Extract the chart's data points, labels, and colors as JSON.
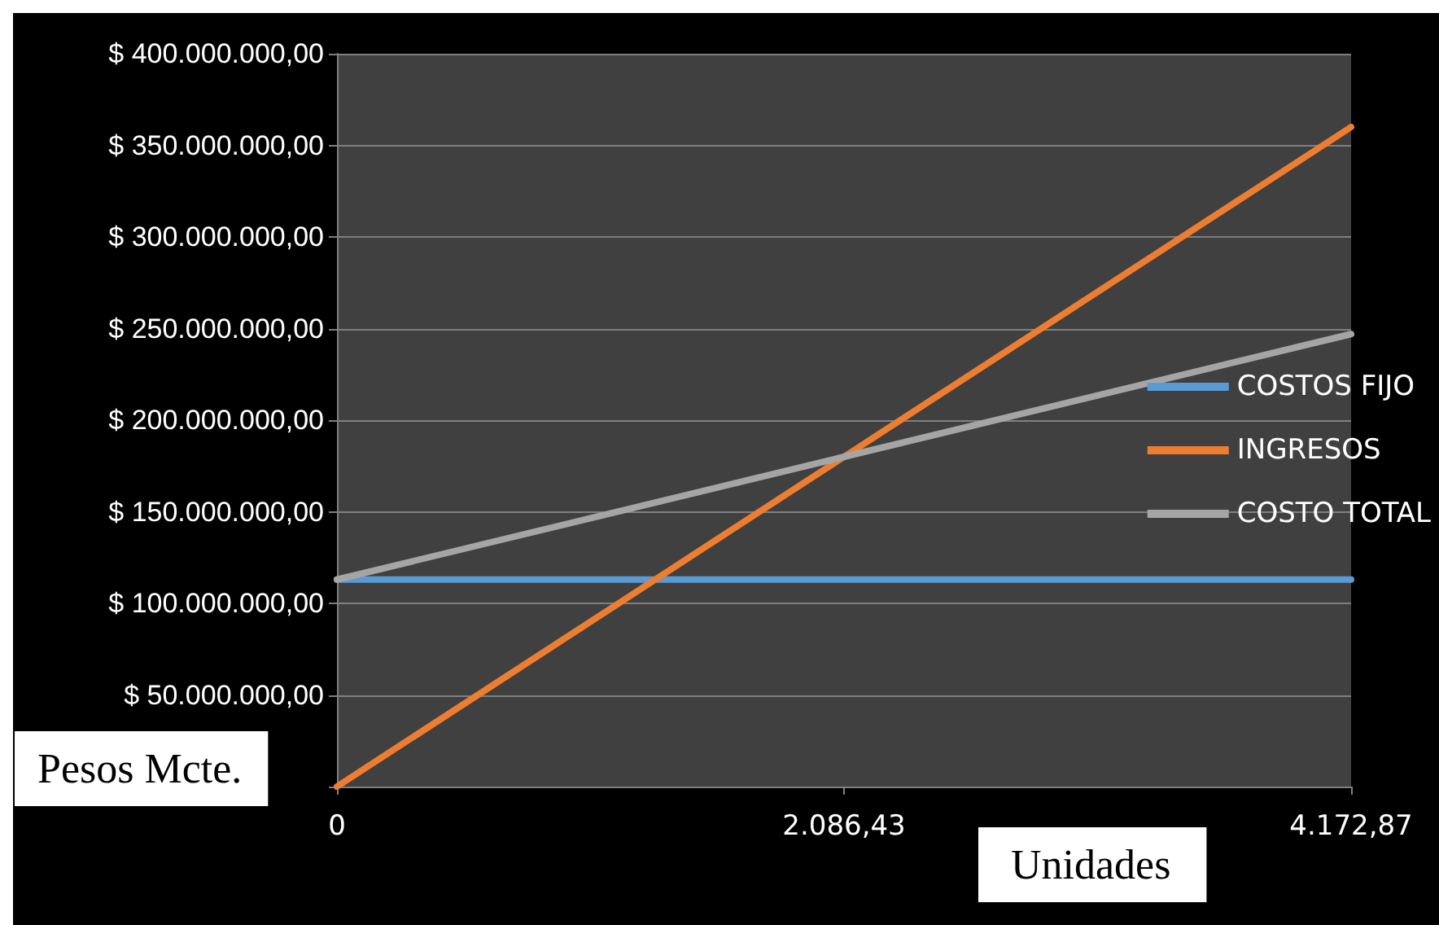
{
  "chart_data": {
    "type": "line",
    "xlabel": "Unidades",
    "ylabel": "Pesos Mcte.",
    "categories": [
      "0",
      "2.086,43",
      "4.172,87"
    ],
    "series": [
      {
        "name": "COSTOS FIJO",
        "color": "#5b9bd5",
        "values": [
          113000000,
          113000000,
          113000000
        ]
      },
      {
        "name": "INGRESOS",
        "color": "#ed7d31",
        "values": [
          0,
          180000000,
          360000000
        ]
      },
      {
        "name": "COSTO TOTAL",
        "color": "#a5a5a5",
        "values": [
          113000000,
          180000000,
          247000000
        ]
      }
    ],
    "ylim": [
      0,
      400000000
    ],
    "yticks": [
      {
        "value": 0,
        "label": null
      },
      {
        "value": 50000000,
        "label": "$ 50.000.000,00"
      },
      {
        "value": 100000000,
        "label": "$ 100.000.000,00"
      },
      {
        "value": 150000000,
        "label": "$ 150.000.000,00"
      },
      {
        "value": 200000000,
        "label": "$ 200.000.000,00"
      },
      {
        "value": 250000000,
        "label": "$ 250.000.000,00"
      },
      {
        "value": 300000000,
        "label": "$ 300.000.000,00"
      },
      {
        "value": 350000000,
        "label": "$ 350.000.000,00"
      },
      {
        "value": 400000000,
        "label": "$ 400.000.000,00"
      }
    ],
    "grid": "y",
    "legend": "right",
    "marker": "none",
    "line_style": "solid"
  }
}
